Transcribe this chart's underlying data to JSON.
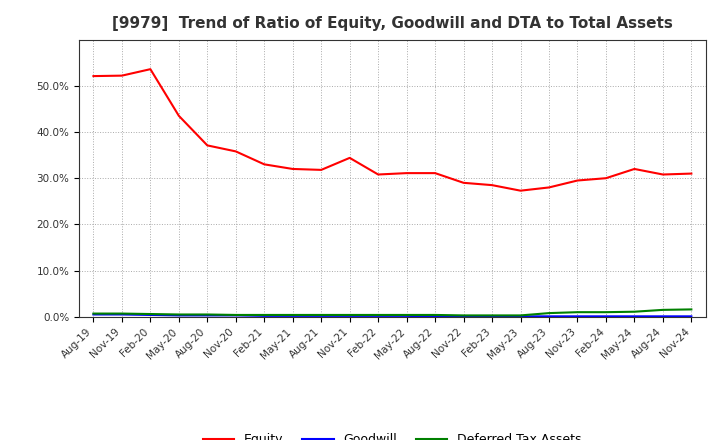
{
  "title": "[9979]  Trend of Ratio of Equity, Goodwill and DTA to Total Assets",
  "x_labels": [
    "Aug-19",
    "Nov-19",
    "Feb-20",
    "May-20",
    "Aug-20",
    "Nov-20",
    "Feb-21",
    "May-21",
    "Aug-21",
    "Nov-21",
    "Feb-22",
    "May-22",
    "Aug-22",
    "Nov-22",
    "Feb-23",
    "May-23",
    "Aug-23",
    "Nov-23",
    "Feb-24",
    "May-24",
    "Aug-24",
    "Nov-24"
  ],
  "equity": [
    0.521,
    0.522,
    0.536,
    0.435,
    0.371,
    0.358,
    0.33,
    0.32,
    0.318,
    0.344,
    0.308,
    0.311,
    0.311,
    0.29,
    0.285,
    0.273,
    0.28,
    0.295,
    0.3,
    0.32,
    0.308,
    0.31
  ],
  "goodwill": [
    0.005,
    0.005,
    0.004,
    0.003,
    0.003,
    0.003,
    0.002,
    0.002,
    0.002,
    0.002,
    0.002,
    0.002,
    0.001,
    0.001,
    0.001,
    0.001,
    0.001,
    0.001,
    0.001,
    0.001,
    0.001,
    0.001
  ],
  "dta": [
    0.007,
    0.007,
    0.006,
    0.005,
    0.005,
    0.004,
    0.004,
    0.004,
    0.004,
    0.004,
    0.004,
    0.004,
    0.004,
    0.003,
    0.003,
    0.003,
    0.008,
    0.01,
    0.01,
    0.011,
    0.015,
    0.016
  ],
  "equity_color": "#ff0000",
  "goodwill_color": "#0000ff",
  "dta_color": "#008000",
  "ylim": [
    0.0,
    0.6
  ],
  "yticks": [
    0.0,
    0.1,
    0.2,
    0.3,
    0.4,
    0.5
  ],
  "background_color": "#ffffff",
  "grid_color": "#aaaaaa",
  "title_fontsize": 11,
  "tick_fontsize": 7.5,
  "legend_fontsize": 9
}
